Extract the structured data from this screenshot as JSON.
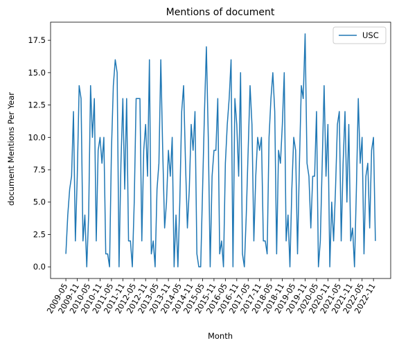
{
  "chart_data": {
    "type": "line",
    "title": "Mentions of document",
    "xlabel": "Month",
    "ylabel": "document Mentions Per Year",
    "legend": "upper right",
    "x": [
      "2009-05",
      "2009-06",
      "2009-07",
      "2009-08",
      "2009-09",
      "2009-10",
      "2009-11",
      "2009-12",
      "2010-01",
      "2010-02",
      "2010-03",
      "2010-04",
      "2010-05",
      "2010-06",
      "2010-07",
      "2010-08",
      "2010-09",
      "2010-10",
      "2010-11",
      "2010-12",
      "2011-01",
      "2011-02",
      "2011-03",
      "2011-04",
      "2011-05",
      "2011-06",
      "2011-07",
      "2011-08",
      "2011-09",
      "2011-10",
      "2011-11",
      "2011-12",
      "2012-01",
      "2012-02",
      "2012-03",
      "2012-04",
      "2012-05",
      "2012-06",
      "2012-07",
      "2012-08",
      "2012-09",
      "2012-10",
      "2012-11",
      "2012-12",
      "2013-01",
      "2013-02",
      "2013-03",
      "2013-04",
      "2013-05",
      "2013-06",
      "2013-07",
      "2013-08",
      "2013-09",
      "2013-10",
      "2013-11",
      "2013-12",
      "2014-01",
      "2014-02",
      "2014-03",
      "2014-04",
      "2014-05",
      "2014-06",
      "2014-07",
      "2014-08",
      "2014-09",
      "2014-10",
      "2014-11",
      "2014-12",
      "2015-01",
      "2015-02",
      "2015-03",
      "2015-04",
      "2015-05",
      "2015-06",
      "2015-07",
      "2015-08",
      "2015-09",
      "2015-10",
      "2015-11",
      "2015-12",
      "2016-01",
      "2016-02",
      "2016-03",
      "2016-04",
      "2016-05",
      "2016-06",
      "2016-07",
      "2016-08",
      "2016-09",
      "2016-10",
      "2016-11",
      "2016-12",
      "2017-01",
      "2017-02",
      "2017-03",
      "2017-04",
      "2017-05",
      "2017-06",
      "2017-07",
      "2017-08",
      "2017-09",
      "2017-10",
      "2017-11",
      "2017-12",
      "2018-01",
      "2018-02",
      "2018-03",
      "2018-04",
      "2018-05",
      "2018-06",
      "2018-07",
      "2018-08",
      "2018-09",
      "2018-10",
      "2018-11",
      "2018-12",
      "2019-01",
      "2019-02",
      "2019-03",
      "2019-04",
      "2019-05",
      "2019-06",
      "2019-07",
      "2019-08",
      "2019-09",
      "2019-10",
      "2019-11",
      "2019-12",
      "2020-01",
      "2020-02",
      "2020-03",
      "2020-04",
      "2020-05",
      "2020-06",
      "2020-07",
      "2020-08",
      "2020-09",
      "2020-10",
      "2020-11",
      "2020-12",
      "2021-01",
      "2021-02",
      "2021-03",
      "2021-04",
      "2021-05",
      "2021-06",
      "2021-07",
      "2021-08",
      "2021-09",
      "2021-10",
      "2021-11",
      "2021-12",
      "2022-01",
      "2022-02",
      "2022-03",
      "2022-04",
      "2022-05",
      "2022-06",
      "2022-07",
      "2022-08",
      "2022-09",
      "2022-10",
      "2022-11",
      "2022-12"
    ],
    "series": [
      {
        "name": "USC",
        "color": "#1f77b4",
        "values": [
          1,
          4,
          6,
          7,
          12,
          2,
          7,
          14,
          13,
          2,
          4,
          0,
          4,
          14,
          10,
          13,
          2,
          9,
          10,
          8,
          10,
          1,
          1,
          0,
          9,
          14,
          16,
          15,
          0,
          8,
          13,
          6,
          13,
          2,
          2,
          0,
          5,
          13,
          13,
          13,
          2,
          9,
          11,
          7,
          16,
          1,
          2,
          0,
          6,
          8,
          16,
          9,
          3,
          5,
          9,
          7,
          10,
          0,
          4,
          0,
          5,
          12,
          14,
          8,
          3,
          6,
          11,
          9,
          12,
          1,
          0,
          0,
          6,
          12,
          17,
          10,
          0,
          7,
          9,
          9,
          13,
          1,
          2,
          0,
          8,
          11,
          13,
          16,
          0,
          13,
          11,
          7,
          15,
          1,
          0,
          4,
          9,
          14,
          11,
          2,
          7,
          10,
          9,
          10,
          2,
          2,
          1,
          10,
          13,
          15,
          12,
          1,
          9,
          8,
          11,
          15,
          2,
          4,
          0,
          6,
          10,
          9,
          1,
          8,
          14,
          13,
          18,
          8,
          7,
          3,
          7,
          7,
          12,
          0,
          2,
          8,
          14,
          7,
          11,
          0,
          5,
          2,
          6,
          11,
          12,
          2,
          8,
          12,
          5,
          11,
          2,
          3,
          0,
          6,
          13,
          8,
          10,
          1,
          7,
          8,
          3,
          9,
          10,
          2
        ]
      }
    ],
    "xticks": [
      "2009-05",
      "2009-11",
      "2010-05",
      "2010-11",
      "2011-05",
      "2011-11",
      "2012-05",
      "2012-11",
      "2013-05",
      "2013-11",
      "2014-05",
      "2014-11",
      "2015-05",
      "2015-11",
      "2016-05",
      "2016-11",
      "2017-05",
      "2017-11",
      "2018-05",
      "2018-11",
      "2019-05",
      "2019-11",
      "2020-05",
      "2020-11",
      "2021-05",
      "2021-11",
      "2022-05",
      "2022-11"
    ],
    "ylim": [
      -0.9,
      18.9
    ],
    "yticks": [
      {
        "value": 0,
        "label": "0.0"
      },
      {
        "value": 2.5,
        "label": "2.5"
      },
      {
        "value": 5,
        "label": "5.0"
      },
      {
        "value": 7.5,
        "label": "7.5"
      },
      {
        "value": 10,
        "label": "10.0"
      },
      {
        "value": 12.5,
        "label": "12.5"
      },
      {
        "value": 15,
        "label": "15.0"
      },
      {
        "value": 17.5,
        "label": "17.5"
      }
    ]
  }
}
